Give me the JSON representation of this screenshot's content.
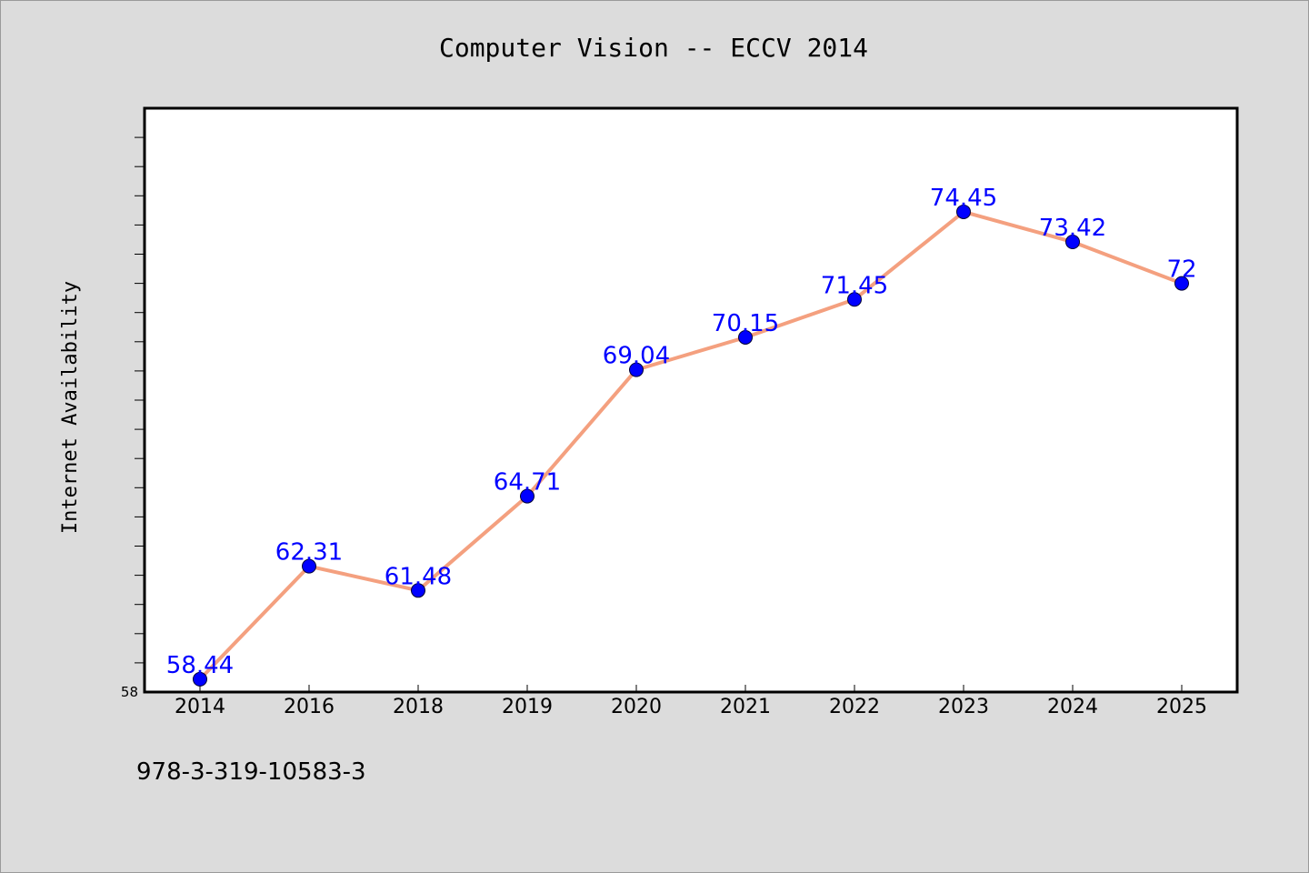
{
  "footer_text": "978-3-319-10583-3",
  "chart_data": {
    "type": "line",
    "title": "Computer Vision -- ECCV 2014",
    "xlabel": "",
    "ylabel": "Internet Availability",
    "categories": [
      "2014",
      "2016",
      "2018",
      "2019",
      "2020",
      "2021",
      "2022",
      "2023",
      "2024",
      "2025"
    ],
    "values": [
      58.44,
      62.31,
      61.48,
      64.71,
      69.04,
      70.15,
      71.45,
      74.45,
      73.42,
      72
    ],
    "data_labels": [
      "58.44",
      "62.31",
      "61.48",
      "64.71",
      "69.04",
      "70.15",
      "71.45",
      "74.45",
      "73.42",
      "72"
    ],
    "y_tick_labels": [
      "58"
    ],
    "ylim": [
      58,
      78
    ],
    "grid": false,
    "line_color": "#f4a07f",
    "marker_color": "#0000ff",
    "label_color": "#0000ff",
    "plot_background": "#ffffff",
    "page_background": "#dcdcdc"
  }
}
